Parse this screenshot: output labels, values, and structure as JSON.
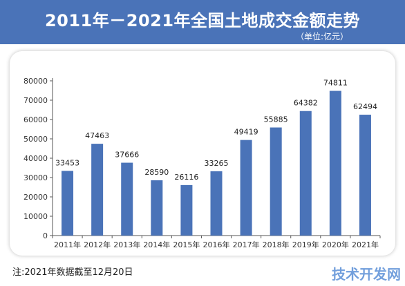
{
  "header": {
    "title": "2011年－2021年全国土地成交金额走势",
    "unit": "（单位:亿元）"
  },
  "footer": {
    "note": "注:2021年数据截至12月20日",
    "watermark": "技术开发网"
  },
  "colors": {
    "banner": "#4a73b8",
    "bar": "#4a73b8"
  },
  "chart_data": {
    "type": "bar",
    "title": "2011年－2021年全国土地成交金额走势",
    "unit": "（单位:亿元）",
    "categories": [
      "2011年",
      "2012年",
      "2013年",
      "2014年",
      "2015年",
      "2016年",
      "2017年",
      "2018年",
      "2019年",
      "2020年",
      "2021年"
    ],
    "values": [
      33453,
      47463,
      37666,
      28590,
      26116,
      33265,
      49419,
      55885,
      64382,
      74811,
      62494
    ],
    "data_labels": [
      "33453",
      "47463",
      "37666",
      "28590",
      "26116",
      "33265",
      "49419",
      "55885",
      "64382",
      "74811",
      "62494"
    ],
    "yticks": [
      "0",
      "10000",
      "20000",
      "30000",
      "40000",
      "50000",
      "60000",
      "70000",
      "80000"
    ],
    "ylim": [
      0,
      80000
    ],
    "grid": false,
    "legend": "none"
  }
}
